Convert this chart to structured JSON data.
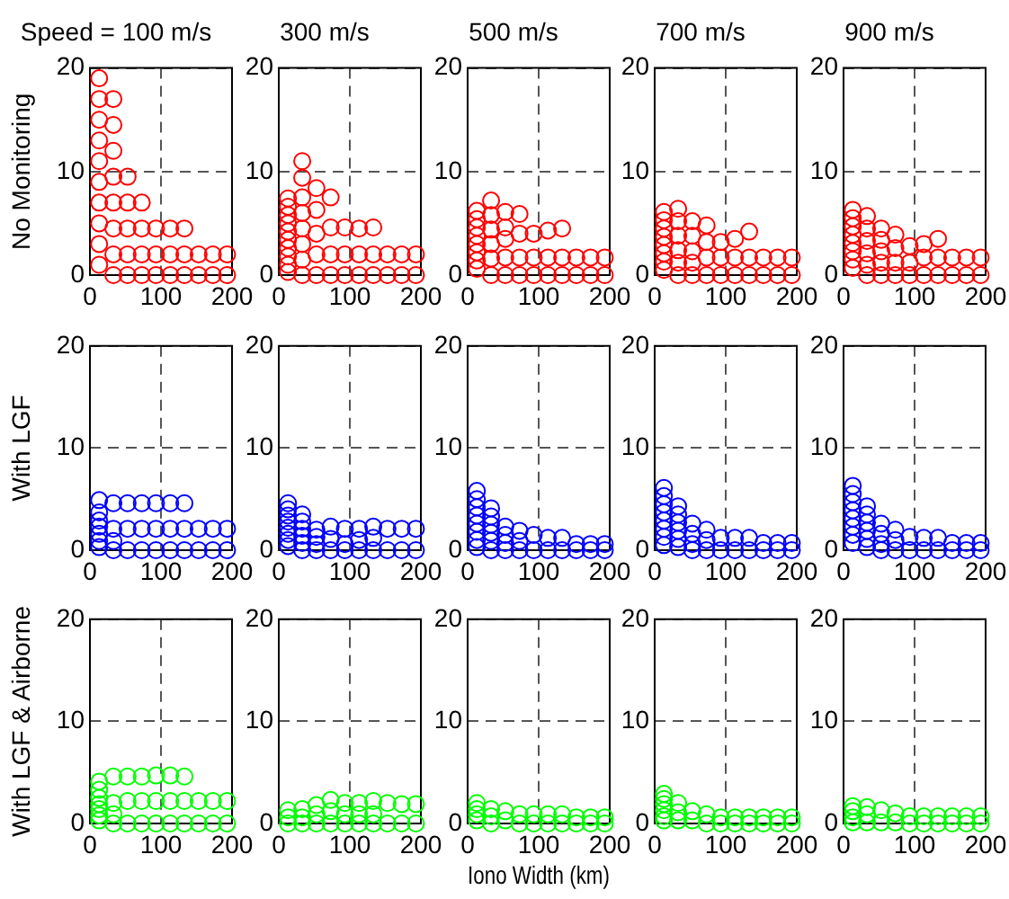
{
  "chart_data": [
    {
      "type": "scatter",
      "title": "Speed = 100 m/s",
      "ylabel": "No Monitoring",
      "color": "#ff0000",
      "marker": "circle",
      "grid": true,
      "xlim": [
        0,
        200
      ],
      "ylim": [
        0,
        20
      ],
      "xticks": [
        0,
        100,
        200
      ],
      "yticks": [
        0,
        10,
        20
      ],
      "x": [
        13,
        13,
        13,
        13,
        13,
        13,
        13,
        13,
        13,
        13,
        33,
        33,
        33,
        33,
        33,
        33,
        33,
        33,
        53,
        53,
        53,
        53,
        53,
        73,
        73,
        73,
        73,
        93,
        93,
        93,
        113,
        113,
        113,
        133,
        133,
        133,
        153,
        153,
        173,
        173,
        193,
        193
      ],
      "values": [
        19,
        17,
        15,
        13,
        11,
        9,
        7,
        5,
        3,
        1,
        17,
        14.5,
        12,
        9.5,
        7,
        4.5,
        2,
        0,
        9.5,
        7,
        4.5,
        2,
        0,
        7,
        4.5,
        2,
        0,
        4.5,
        2,
        0,
        4.5,
        2,
        0,
        4.5,
        2,
        0,
        2,
        0,
        2,
        0,
        2,
        0
      ]
    },
    {
      "type": "scatter",
      "title": "300 m/s",
      "color": "#ff0000",
      "marker": "circle",
      "grid": true,
      "xlim": [
        0,
        200
      ],
      "ylim": [
        0,
        20
      ],
      "xticks": [
        0,
        100,
        200
      ],
      "yticks": [
        0,
        10,
        20
      ],
      "x": [
        13,
        13,
        13,
        13,
        13,
        13,
        13,
        13,
        13,
        13,
        33,
        33,
        33,
        33,
        33,
        33,
        33,
        33,
        53,
        53,
        53,
        53,
        53,
        73,
        73,
        73,
        73,
        93,
        93,
        93,
        113,
        113,
        113,
        133,
        133,
        133,
        153,
        153,
        173,
        173,
        193,
        193
      ],
      "values": [
        7.4,
        6.6,
        5.8,
        5,
        4.2,
        3.4,
        2.6,
        1.8,
        1,
        0.3,
        11,
        9.4,
        7.5,
        6,
        4.5,
        3,
        1.5,
        0,
        8.4,
        6.3,
        4,
        2,
        0,
        7.5,
        4.6,
        2,
        0,
        4.6,
        2,
        0,
        4.5,
        2,
        0,
        4.6,
        2,
        0,
        2,
        0,
        2,
        0,
        2,
        0
      ]
    },
    {
      "type": "scatter",
      "title": "500 m/s",
      "color": "#ff0000",
      "marker": "circle",
      "grid": true,
      "xlim": [
        0,
        200
      ],
      "ylim": [
        0,
        20
      ],
      "xticks": [
        0,
        100,
        200
      ],
      "yticks": [
        0,
        10,
        20
      ],
      "x": [
        13,
        13,
        13,
        13,
        13,
        13,
        13,
        13,
        33,
        33,
        33,
        33,
        33,
        33,
        53,
        53,
        53,
        53,
        53,
        73,
        73,
        73,
        73,
        93,
        93,
        93,
        113,
        113,
        113,
        133,
        133,
        133,
        153,
        153,
        173,
        173,
        193,
        193
      ],
      "values": [
        6.2,
        5.4,
        4.6,
        3.8,
        3,
        2.2,
        1.4,
        0.6,
        7.2,
        5.8,
        4.4,
        3,
        1.6,
        0,
        6.1,
        4.6,
        3.5,
        1.7,
        0,
        5.9,
        4,
        1.7,
        0,
        4,
        1.7,
        0,
        4.3,
        1.7,
        0,
        4.5,
        1.7,
        0,
        1.7,
        0,
        1.7,
        0,
        1.7,
        0
      ]
    },
    {
      "type": "scatter",
      "title": "700 m/s",
      "color": "#ff0000",
      "marker": "circle",
      "grid": true,
      "xlim": [
        0,
        200
      ],
      "ylim": [
        0,
        20
      ],
      "xticks": [
        0,
        100,
        200
      ],
      "yticks": [
        0,
        10,
        20
      ],
      "x": [
        13,
        13,
        13,
        13,
        13,
        13,
        13,
        13,
        33,
        33,
        33,
        33,
        33,
        33,
        53,
        53,
        53,
        53,
        53,
        73,
        73,
        73,
        73,
        93,
        93,
        93,
        113,
        113,
        113,
        133,
        133,
        133,
        153,
        153,
        173,
        173,
        193,
        193
      ],
      "values": [
        6.1,
        5.3,
        4.5,
        3.7,
        2.9,
        2.1,
        1.3,
        0.5,
        6.4,
        5.2,
        3.8,
        2.4,
        1.2,
        0,
        5.2,
        3.8,
        2.3,
        1.2,
        0,
        4.8,
        3.2,
        1.7,
        0,
        3.2,
        1.7,
        0,
        3.5,
        1.7,
        0,
        4.2,
        1.7,
        0,
        1.7,
        0,
        1.7,
        0,
        1.7,
        0
      ]
    },
    {
      "type": "scatter",
      "title": "900 m/s",
      "color": "#ff0000",
      "marker": "circle",
      "grid": true,
      "xlim": [
        0,
        200
      ],
      "ylim": [
        0,
        20
      ],
      "xticks": [
        0,
        100,
        200
      ],
      "yticks": [
        0,
        10,
        20
      ],
      "x": [
        13,
        13,
        13,
        13,
        13,
        13,
        13,
        13,
        33,
        33,
        33,
        33,
        33,
        33,
        53,
        53,
        53,
        53,
        53,
        73,
        73,
        73,
        73,
        93,
        93,
        93,
        113,
        113,
        113,
        133,
        133,
        133,
        153,
        153,
        173,
        173,
        193,
        193
      ],
      "values": [
        6.3,
        5.5,
        4.7,
        3.9,
        3.1,
        2.3,
        1.5,
        0.7,
        5.7,
        4.5,
        3.3,
        2.1,
        1,
        0,
        4.5,
        3.4,
        2.3,
        1.2,
        0,
        3.9,
        2.6,
        1.2,
        0,
        2.8,
        1.2,
        0,
        3,
        1.7,
        0,
        3.5,
        1.7,
        0,
        1.7,
        0,
        1.7,
        0,
        1.7,
        0
      ]
    },
    {
      "type": "scatter",
      "ylabel": "With LGF",
      "color": "#0000ff",
      "marker": "circle",
      "grid": true,
      "xlim": [
        0,
        200
      ],
      "ylim": [
        0,
        20
      ],
      "xticks": [
        0,
        100,
        200
      ],
      "yticks": [
        0,
        10,
        20
      ],
      "x": [
        13,
        13,
        13,
        13,
        13,
        13,
        13,
        33,
        33,
        33,
        33,
        53,
        53,
        53,
        73,
        73,
        73,
        93,
        93,
        93,
        113,
        113,
        113,
        133,
        133,
        133,
        153,
        153,
        173,
        173,
        193,
        193
      ],
      "values": [
        4.9,
        3.7,
        2.9,
        2.3,
        1.6,
        0.9,
        0.3,
        4.6,
        2.1,
        0.9,
        0,
        4.6,
        2.1,
        0,
        4.6,
        2.1,
        0,
        4.6,
        2.1,
        0,
        4.6,
        2.1,
        0,
        4.6,
        2.1,
        0,
        2.1,
        0,
        2.1,
        0,
        2.1,
        0
      ]
    },
    {
      "type": "scatter",
      "color": "#0000ff",
      "marker": "circle",
      "grid": true,
      "xlim": [
        0,
        200
      ],
      "ylim": [
        0,
        20
      ],
      "xticks": [
        0,
        100,
        200
      ],
      "yticks": [
        0,
        10,
        20
      ],
      "x": [
        13,
        13,
        13,
        13,
        13,
        13,
        13,
        13,
        33,
        33,
        33,
        33,
        33,
        33,
        53,
        53,
        53,
        53,
        73,
        73,
        73,
        93,
        93,
        93,
        113,
        113,
        113,
        133,
        133,
        133,
        153,
        153,
        173,
        173,
        193,
        193
      ],
      "values": [
        4.6,
        4,
        3.4,
        2.8,
        2.2,
        1.6,
        1,
        0.4,
        3.5,
        2.8,
        2.1,
        1.4,
        0.7,
        0,
        2,
        1.3,
        0.6,
        0,
        2.3,
        1.1,
        0,
        2.1,
        0.6,
        0,
        2.1,
        1,
        0,
        2.3,
        1.2,
        0,
        2.1,
        0,
        2.1,
        0,
        2.1,
        0
      ]
    },
    {
      "type": "scatter",
      "color": "#0000ff",
      "marker": "circle",
      "grid": true,
      "xlim": [
        0,
        200
      ],
      "ylim": [
        0,
        20
      ],
      "xticks": [
        0,
        100,
        200
      ],
      "yticks": [
        0,
        10,
        20
      ],
      "x": [
        13,
        13,
        13,
        13,
        13,
        13,
        13,
        13,
        33,
        33,
        33,
        33,
        33,
        33,
        53,
        53,
        53,
        53,
        73,
        73,
        73,
        93,
        93,
        113,
        113,
        133,
        133,
        153,
        153,
        173,
        173,
        193,
        193
      ],
      "values": [
        5.8,
        5,
        4.2,
        3.4,
        2.6,
        1.8,
        1,
        0.3,
        4.1,
        3.3,
        2.5,
        1.7,
        0.9,
        0,
        2.3,
        1.5,
        0.7,
        0,
        1.9,
        0.9,
        0,
        1.5,
        0,
        1.2,
        0,
        1.2,
        0,
        0.6,
        0,
        0.6,
        0,
        0.6,
        0
      ]
    },
    {
      "type": "scatter",
      "color": "#0000ff",
      "marker": "circle",
      "grid": true,
      "xlim": [
        0,
        200
      ],
      "ylim": [
        0,
        20
      ],
      "xticks": [
        0,
        100,
        200
      ],
      "yticks": [
        0,
        10,
        20
      ],
      "x": [
        13,
        13,
        13,
        13,
        13,
        13,
        13,
        13,
        33,
        33,
        33,
        33,
        33,
        33,
        53,
        53,
        53,
        53,
        73,
        73,
        73,
        93,
        93,
        113,
        113,
        133,
        133,
        153,
        153,
        173,
        173,
        193,
        193
      ],
      "values": [
        6.1,
        5.3,
        4.5,
        3.7,
        2.9,
        2.1,
        1.3,
        0.5,
        4.3,
        3.5,
        2.7,
        1.9,
        1.1,
        0.3,
        2.6,
        1.6,
        0.6,
        0,
        2,
        1,
        0,
        1.2,
        0,
        1.2,
        0,
        1.2,
        0,
        0.7,
        0,
        0.7,
        0,
        0.7,
        0
      ]
    },
    {
      "type": "scatter",
      "color": "#0000ff",
      "marker": "circle",
      "grid": true,
      "xlim": [
        0,
        200
      ],
      "ylim": [
        0,
        20
      ],
      "xticks": [
        0,
        100,
        200
      ],
      "yticks": [
        0,
        10,
        20
      ],
      "x": [
        13,
        13,
        13,
        13,
        13,
        13,
        13,
        13,
        33,
        33,
        33,
        33,
        33,
        33,
        53,
        53,
        53,
        53,
        73,
        73,
        73,
        93,
        93,
        113,
        113,
        133,
        133,
        153,
        153,
        173,
        173,
        193,
        193
      ],
      "values": [
        6.3,
        5.5,
        4.7,
        3.9,
        3.1,
        2.3,
        1.5,
        0.7,
        4.3,
        3.5,
        2.7,
        1.9,
        1.1,
        0.3,
        2.6,
        1.6,
        0.6,
        0,
        2,
        1,
        0,
        1.3,
        0,
        1.2,
        0,
        1.2,
        0,
        0.7,
        0,
        0.7,
        0,
        0.7,
        0
      ]
    },
    {
      "type": "scatter",
      "ylabel": "With LGF & Airborne",
      "color": "#00ff00",
      "marker": "circle",
      "grid": true,
      "xlim": [
        0,
        200
      ],
      "ylim": [
        0,
        20
      ],
      "xticks": [
        0,
        100,
        200
      ],
      "yticks": [
        0,
        10,
        20
      ],
      "x": [
        13,
        13,
        13,
        13,
        13,
        13,
        13,
        33,
        33,
        33,
        33,
        53,
        53,
        53,
        73,
        73,
        73,
        93,
        93,
        93,
        113,
        113,
        113,
        133,
        133,
        133,
        153,
        153,
        173,
        173,
        193,
        193
      ],
      "values": [
        4.1,
        3.3,
        2.5,
        1.9,
        1.4,
        0.8,
        0.3,
        4.6,
        2,
        0.9,
        0,
        4.6,
        2.2,
        0,
        4.6,
        2.2,
        0,
        4.7,
        2.2,
        0,
        4.7,
        2.2,
        0,
        4.6,
        2.2,
        0,
        2.2,
        0,
        2.2,
        0,
        2.2,
        0
      ]
    },
    {
      "type": "scatter",
      "color": "#00ff00",
      "marker": "circle",
      "grid": true,
      "xlim": [
        0,
        200
      ],
      "ylim": [
        0,
        20
      ],
      "xticks": [
        0,
        100,
        200
      ],
      "yticks": [
        0,
        10,
        20
      ],
      "x": [
        13,
        13,
        13,
        33,
        33,
        33,
        53,
        53,
        53,
        73,
        73,
        73,
        93,
        93,
        93,
        113,
        113,
        113,
        133,
        133,
        133,
        153,
        153,
        173,
        173,
        193,
        193
      ],
      "values": [
        1.3,
        0.6,
        0,
        1.4,
        0.6,
        0,
        1.8,
        0.9,
        0,
        2.3,
        1.2,
        0,
        2,
        0.9,
        0,
        2,
        0.9,
        0,
        2.2,
        0.9,
        0,
        2,
        0,
        1.9,
        0,
        1.9,
        0
      ]
    },
    {
      "type": "scatter",
      "xlabel": "Iono Width (km)",
      "color": "#00ff00",
      "marker": "circle",
      "grid": true,
      "xlim": [
        0,
        200
      ],
      "ylim": [
        0,
        20
      ],
      "xticks": [
        0,
        100,
        200
      ],
      "yticks": [
        0,
        10,
        20
      ],
      "x": [
        13,
        13,
        13,
        13,
        33,
        33,
        33,
        53,
        53,
        73,
        73,
        93,
        93,
        113,
        113,
        133,
        133,
        153,
        153,
        173,
        173,
        193,
        193
      ],
      "values": [
        2,
        1.4,
        0.9,
        0.3,
        1.4,
        0.7,
        0,
        1.2,
        0.3,
        0.9,
        0,
        0.9,
        0,
        0.9,
        0,
        0.9,
        0,
        0.6,
        0,
        0.6,
        0,
        0.6,
        0
      ]
    },
    {
      "type": "scatter",
      "color": "#00ff00",
      "marker": "circle",
      "grid": true,
      "xlim": [
        0,
        200
      ],
      "ylim": [
        0,
        20
      ],
      "xticks": [
        0,
        100,
        200
      ],
      "yticks": [
        0,
        10,
        20
      ],
      "x": [
        13,
        13,
        13,
        13,
        13,
        13,
        33,
        33,
        33,
        53,
        53,
        73,
        73,
        93,
        93,
        113,
        113,
        133,
        133,
        153,
        153,
        173,
        173,
        193,
        193
      ],
      "values": [
        2.9,
        2.4,
        1.9,
        1.3,
        0.7,
        0.3,
        2,
        1.1,
        0.3,
        1.2,
        0.3,
        0.9,
        0,
        0.6,
        0,
        0.6,
        0,
        0.6,
        0,
        0.6,
        0,
        0.6,
        0,
        0.6,
        0
      ]
    },
    {
      "type": "scatter",
      "color": "#00ff00",
      "marker": "circle",
      "grid": true,
      "xlim": [
        0,
        200
      ],
      "ylim": [
        0,
        20
      ],
      "xticks": [
        0,
        100,
        200
      ],
      "yticks": [
        0,
        10,
        20
      ],
      "x": [
        13,
        13,
        13,
        13,
        33,
        33,
        33,
        53,
        53,
        73,
        73,
        93,
        93,
        113,
        113,
        133,
        133,
        153,
        153,
        173,
        173,
        193,
        193
      ],
      "values": [
        1.7,
        1.2,
        0.6,
        0.1,
        1.6,
        0.9,
        0.1,
        1.3,
        0.1,
        1,
        0.1,
        0.7,
        0,
        0.7,
        0,
        0.7,
        0,
        0.7,
        0,
        0.7,
        0,
        0.7,
        0
      ]
    }
  ]
}
